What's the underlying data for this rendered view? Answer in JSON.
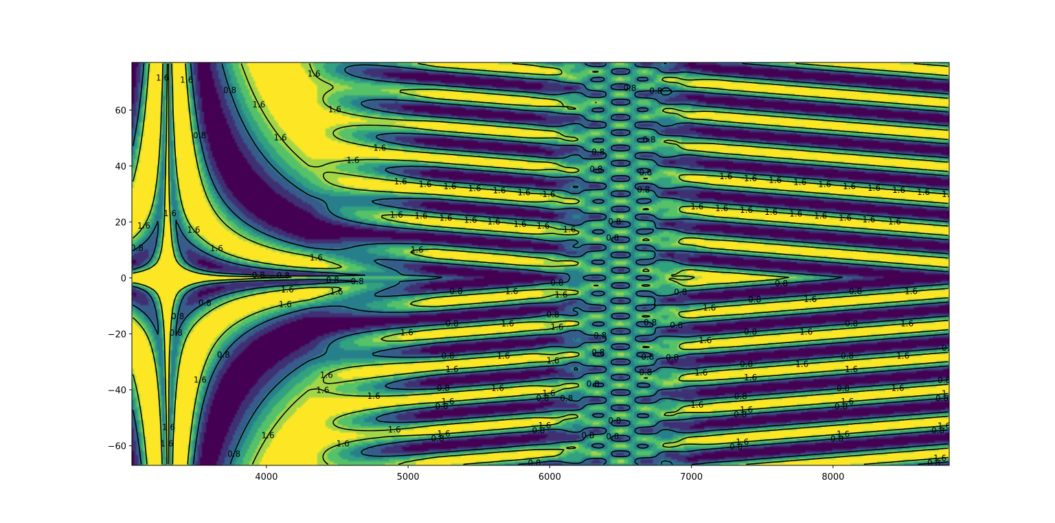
{
  "chart_data": {
    "type": "heatmap",
    "subtype": "filled-contour with line contours",
    "title": "",
    "xlabel": "",
    "ylabel": "",
    "xlim": [
      3050,
      8820
    ],
    "ylim": [
      -67,
      77
    ],
    "x_ticks": [
      4000,
      5000,
      6000,
      7000,
      8000
    ],
    "x_tick_labels": [
      "4000",
      "5000",
      "6000",
      "7000",
      "8000"
    ],
    "y_ticks": [
      -60,
      -40,
      -20,
      0,
      20,
      40,
      60
    ],
    "y_tick_labels": [
      "−60",
      "−40",
      "−20",
      "0",
      "20",
      "40",
      "60"
    ],
    "colormap": [
      "#440154",
      "#3b528b",
      "#21918c",
      "#5ec962",
      "#fde725"
    ],
    "contour_levels": [
      0.8,
      1.6
    ],
    "contour_level_labels": [
      "0.8",
      "1.6"
    ],
    "contour_color": "#000000",
    "grid": false,
    "legend": "none",
    "features": {
      "saddle_center_x": 3300,
      "saddle_center_y": 0,
      "dense_band_x": [
        6000,
        6900
      ],
      "dense_band_center_x": 6500
    }
  }
}
